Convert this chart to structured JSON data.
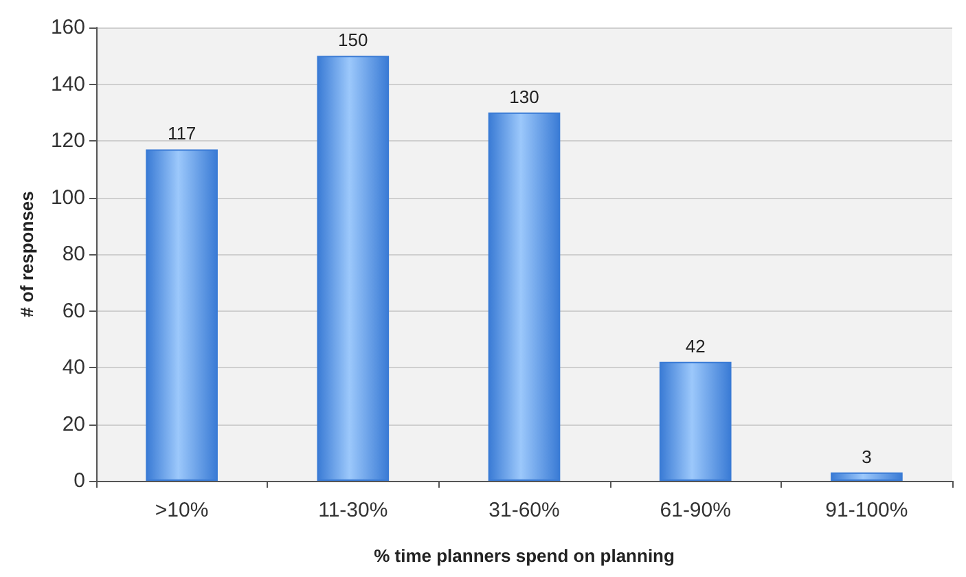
{
  "chart_data": {
    "type": "bar",
    "xlabel": "% time planners spend on planning",
    "ylabel": "# of responses",
    "categories": [
      ">10%",
      "11-30%",
      "31-60%",
      "61-90%",
      "91-100%"
    ],
    "values": [
      117,
      150,
      130,
      42,
      3
    ],
    "color": "#3a7bd5",
    "ylim": [
      0,
      160
    ],
    "yticks": [
      0,
      20,
      40,
      60,
      80,
      100,
      120,
      140,
      160
    ],
    "grid": "y",
    "data_labels": true
  }
}
